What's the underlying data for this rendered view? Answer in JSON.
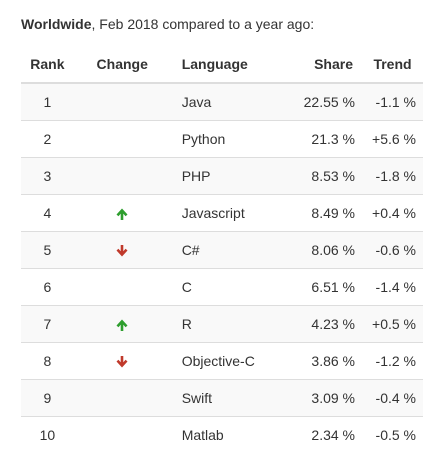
{
  "caption": {
    "region": "Worldwide",
    "rest": ", Feb 2018 compared to a year ago:"
  },
  "columns": {
    "rank": "Rank",
    "change": "Change",
    "language": "Language",
    "share": "Share",
    "trend": "Trend"
  },
  "colors": {
    "up": "#2e9e2e",
    "down": "#c0392b"
  },
  "rows": [
    {
      "rank": "1",
      "change": "",
      "language": "Java",
      "share": "22.55 %",
      "trend": "-1.1 %"
    },
    {
      "rank": "2",
      "change": "",
      "language": "Python",
      "share": "21.3 %",
      "trend": "+5.6 %"
    },
    {
      "rank": "3",
      "change": "",
      "language": "PHP",
      "share": "8.53 %",
      "trend": "-1.8 %"
    },
    {
      "rank": "4",
      "change": "up",
      "language": "Javascript",
      "share": "8.49 %",
      "trend": "+0.4 %"
    },
    {
      "rank": "5",
      "change": "down",
      "language": "C#",
      "share": "8.06 %",
      "trend": "-0.6 %"
    },
    {
      "rank": "6",
      "change": "",
      "language": "C",
      "share": "6.51 %",
      "trend": "-1.4 %"
    },
    {
      "rank": "7",
      "change": "up",
      "language": "R",
      "share": "4.23 %",
      "trend": "+0.5 %"
    },
    {
      "rank": "8",
      "change": "down",
      "language": "Objective-C",
      "share": "3.86 %",
      "trend": "-1.2 %"
    },
    {
      "rank": "9",
      "change": "",
      "language": "Swift",
      "share": "3.09 %",
      "trend": "-0.4 %"
    },
    {
      "rank": "10",
      "change": "",
      "language": "Matlab",
      "share": "2.34 %",
      "trend": "-0.5 %"
    }
  ]
}
